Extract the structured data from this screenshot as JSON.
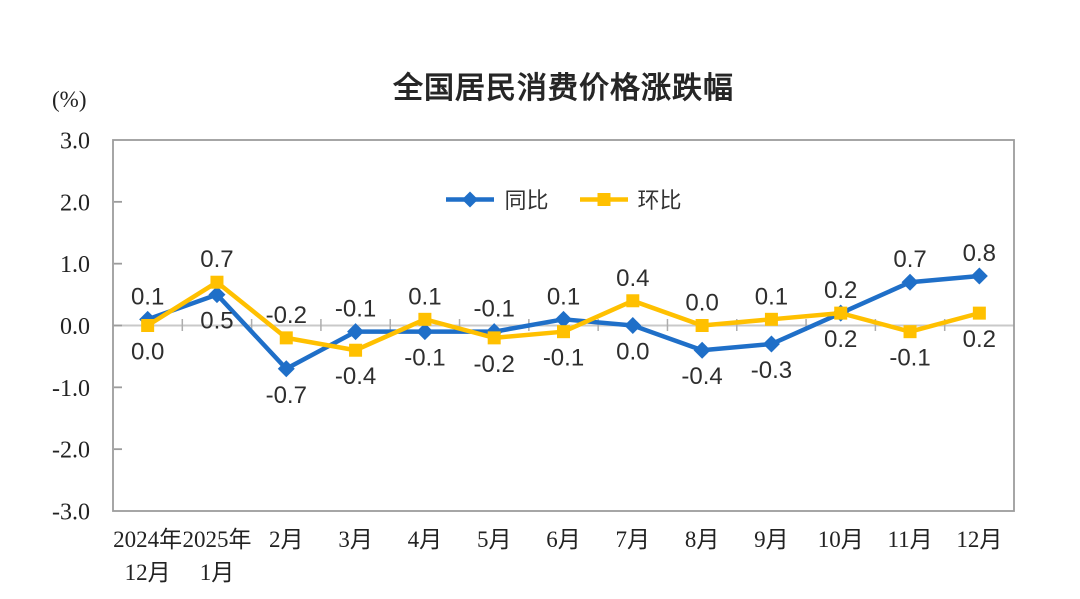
{
  "chart_data": {
    "type": "line",
    "title": "全国居民消费价格涨跌幅",
    "unit": "(%)",
    "categories": [
      [
        "2024年",
        "12月"
      ],
      [
        "2025年",
        "1月"
      ],
      [
        "2月"
      ],
      [
        "3月"
      ],
      [
        "4月"
      ],
      [
        "5月"
      ],
      [
        "6月"
      ],
      [
        "7月"
      ],
      [
        "8月"
      ],
      [
        "9月"
      ],
      [
        "10月"
      ],
      [
        "11月"
      ],
      [
        "12月"
      ]
    ],
    "series": [
      {
        "name": "同比",
        "marker": "diamond",
        "color": "#1F6FC8",
        "values": [
          0.1,
          0.5,
          -0.7,
          -0.1,
          -0.1,
          -0.1,
          0.1,
          0.0,
          -0.4,
          -0.3,
          0.2,
          0.7,
          0.8
        ]
      },
      {
        "name": "环比",
        "marker": "square",
        "color": "#FFC000",
        "values": [
          0.0,
          0.7,
          -0.2,
          -0.4,
          0.1,
          -0.2,
          -0.1,
          0.4,
          0.0,
          0.1,
          0.2,
          -0.1,
          0.2
        ]
      }
    ],
    "ylim": [
      -3.0,
      3.0
    ],
    "yticks": [
      3.0,
      2.0,
      1.0,
      0.0,
      -1.0,
      -2.0,
      -3.0
    ],
    "label_decimals": 1,
    "grid": "zero-line-only",
    "legend_position": "top-center-inside"
  },
  "colors": {
    "frame_gray": "#9C9C9C",
    "zero_line_gray": "#C9C9C9",
    "boundary_tick_gray": "#ADADAD",
    "data_label_text": "#2E2E2E",
    "axis_text": "#222222",
    "background": "#FFFFFF"
  }
}
